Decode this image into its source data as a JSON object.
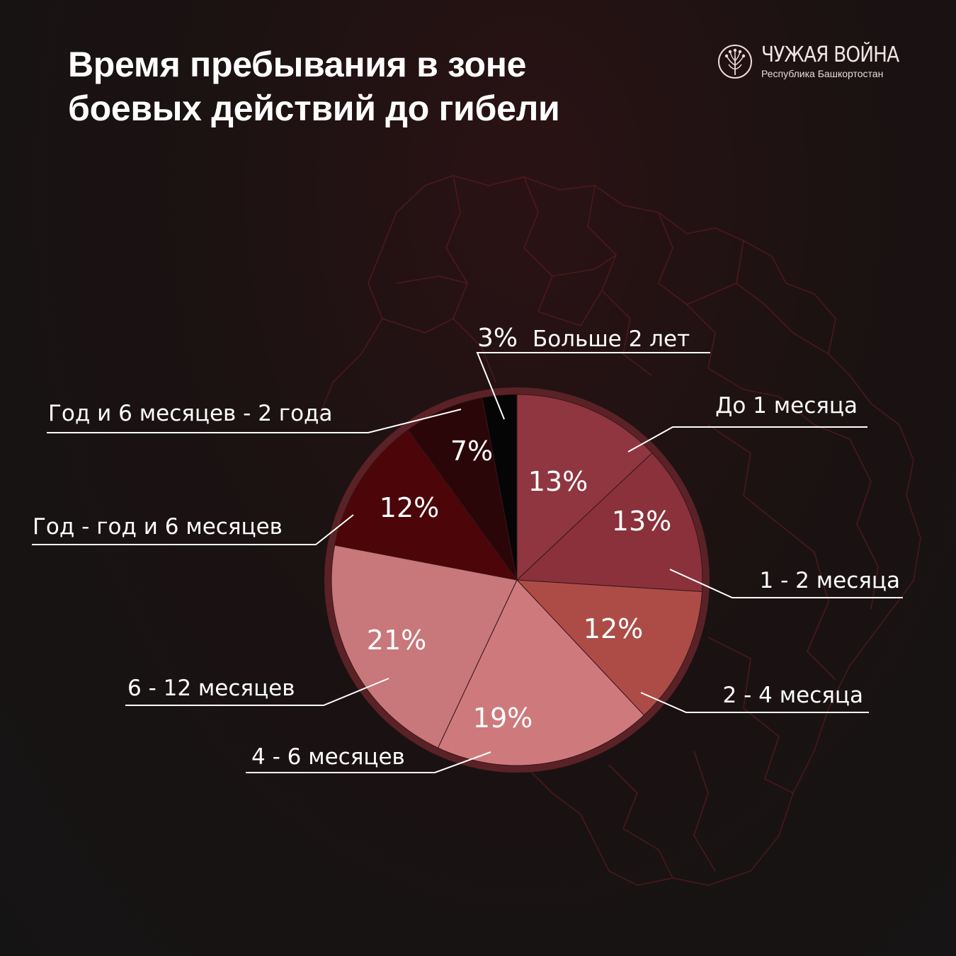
{
  "title": {
    "line1": "Время пребывания в зоне",
    "line2": "боевых действий до гибели"
  },
  "brand": {
    "name": "ЧУЖАЯ ВОЙНА",
    "subtitle": "Республика Башкортостан",
    "icon": "dandelion-logo-icon",
    "color": "#f0d9d9"
  },
  "chart_data": {
    "type": "pie",
    "title": "Время пребывания в зоне боевых действий до гибели",
    "start": "top, clockwise",
    "slices": [
      {
        "label": "До 1 месяца",
        "value": 13,
        "display": "13%",
        "color": "#8f3640"
      },
      {
        "label": "1 - 2 месяца",
        "value": 13,
        "display": "13%",
        "color": "#8a313b"
      },
      {
        "label": "2 - 4 месяца",
        "value": 12,
        "display": "12%",
        "color": "#ad4c47"
      },
      {
        "label": "4 - 6 месяцев",
        "value": 19,
        "display": "19%",
        "color": "#ce7a7d"
      },
      {
        "label": "6 - 12 месяцев",
        "value": 21,
        "display": "21%",
        "color": "#c8777a"
      },
      {
        "label": "Год - год и 6 месяцев",
        "value": 12,
        "display": "12%",
        "color": "#4c0509"
      },
      {
        "label": "Год и 6 месяцев - 2 года",
        "value": 7,
        "display": "7%",
        "color": "#2a0609"
      },
      {
        "label": "Больше 2 лет",
        "value": 3,
        "display": "3%",
        "color": "#050505"
      }
    ],
    "ring_color": "#5a2226",
    "map_outline_color": "#5a1a1e"
  }
}
